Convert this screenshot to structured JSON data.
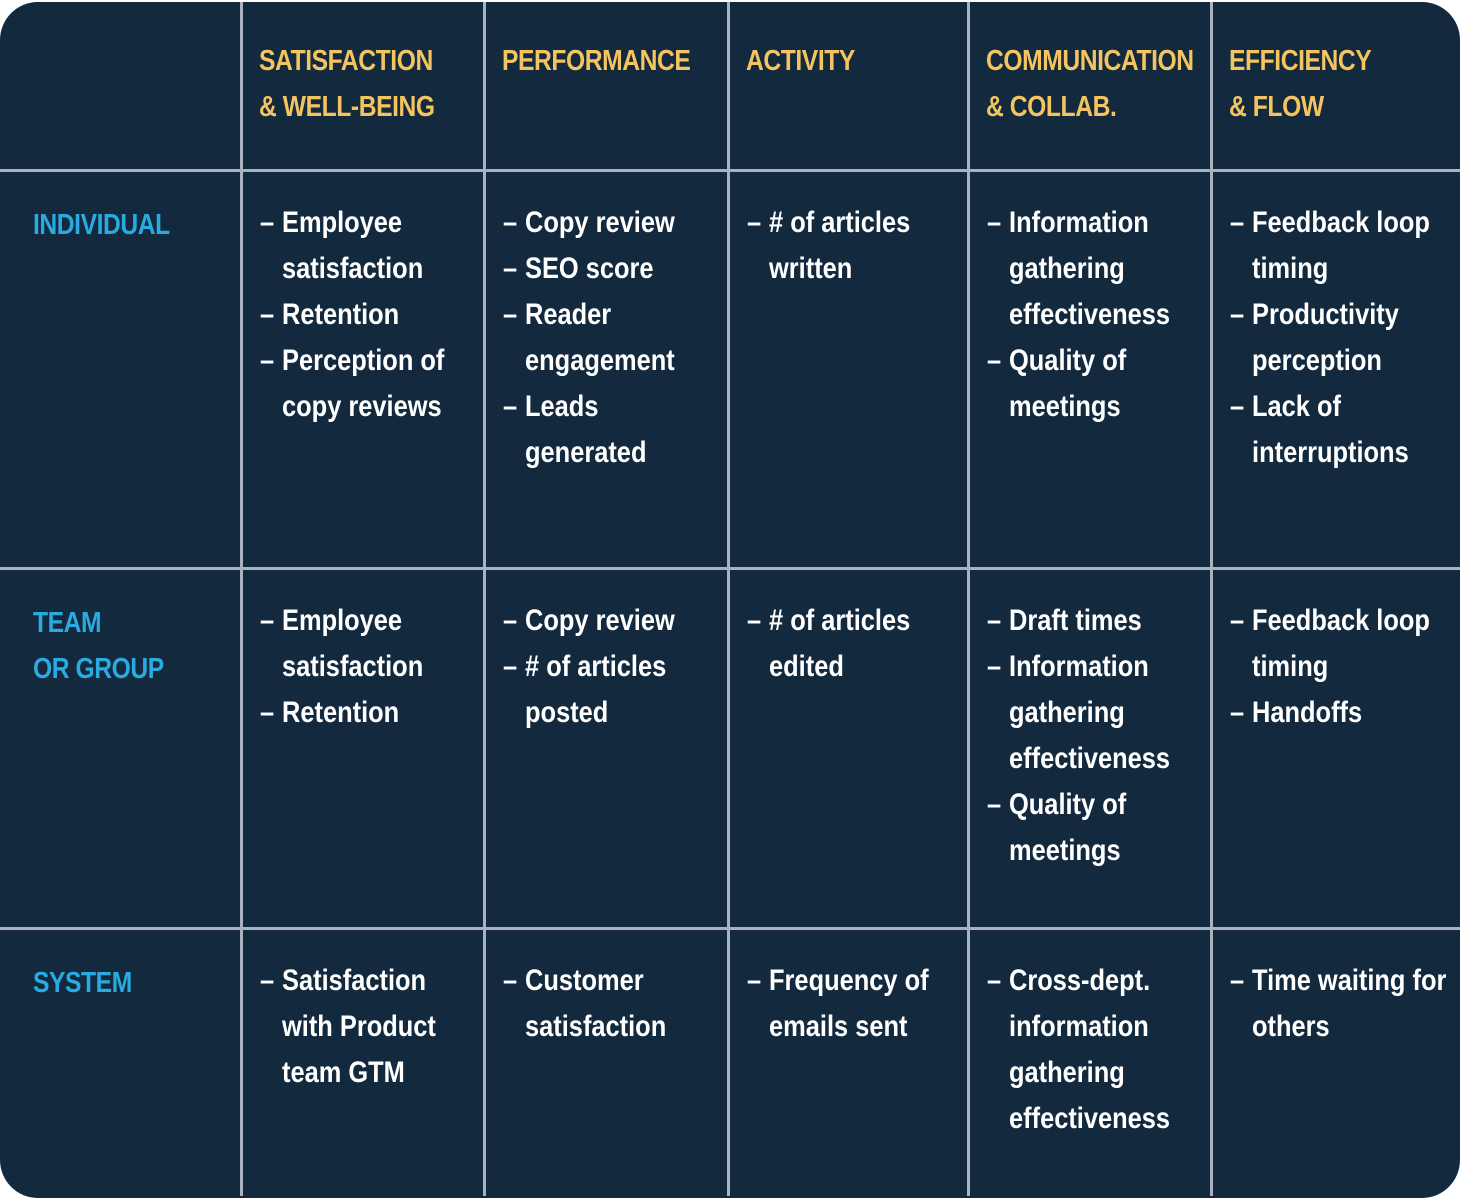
{
  "theme": {
    "table_background": "#13293E",
    "grid_line_color": "#A9B2BE",
    "column_header_color": "#F3C45F",
    "row_label_color": "#29ABE2",
    "cell_text_color": "#FFFFFF",
    "page_background": "#FFFFFF"
  },
  "table": {
    "bullet": "–",
    "column_headers": [
      "",
      "SATISFACTION\n& WELL-BEING",
      "PERFORMANCE",
      "ACTIVITY",
      "COMMUNICATION\n& COLLAB.",
      "EFFICIENCY\n& FLOW"
    ],
    "rows": [
      {
        "label": "INDIVIDUAL",
        "cells": [
          {
            "items": [
              "Employee satisfaction",
              "Retention",
              "Perception of copy reviews"
            ]
          },
          {
            "items": [
              "Copy review",
              "SEO score",
              "Reader engagement",
              "Leads generated"
            ]
          },
          {
            "items": [
              "# of articles written"
            ]
          },
          {
            "items": [
              "Information gathering effectiveness",
              "Quality of meetings"
            ]
          },
          {
            "items": [
              "Feedback loop timing",
              "Productivity perception",
              "Lack of interruptions"
            ]
          }
        ]
      },
      {
        "label": "TEAM\nOR GROUP",
        "cells": [
          {
            "items": [
              "Employee satisfaction",
              "Retention"
            ]
          },
          {
            "items": [
              "Copy review",
              "# of articles posted"
            ]
          },
          {
            "items": [
              "# of articles edited"
            ]
          },
          {
            "items": [
              "Draft times",
              "Information gathering effectiveness",
              "Quality of meetings"
            ]
          },
          {
            "items": [
              "Feedback loop timing",
              "Handoffs"
            ]
          }
        ]
      },
      {
        "label": "SYSTEM",
        "cells": [
          {
            "items": [
              "Satisfaction with Product team GTM"
            ]
          },
          {
            "items": [
              "Customer satisfaction"
            ]
          },
          {
            "items": [
              "Frequency of emails sent"
            ]
          },
          {
            "items": [
              "Cross-dept. information gathering effectiveness"
            ]
          },
          {
            "items": [
              "Time waiting for others"
            ]
          }
        ]
      }
    ]
  }
}
